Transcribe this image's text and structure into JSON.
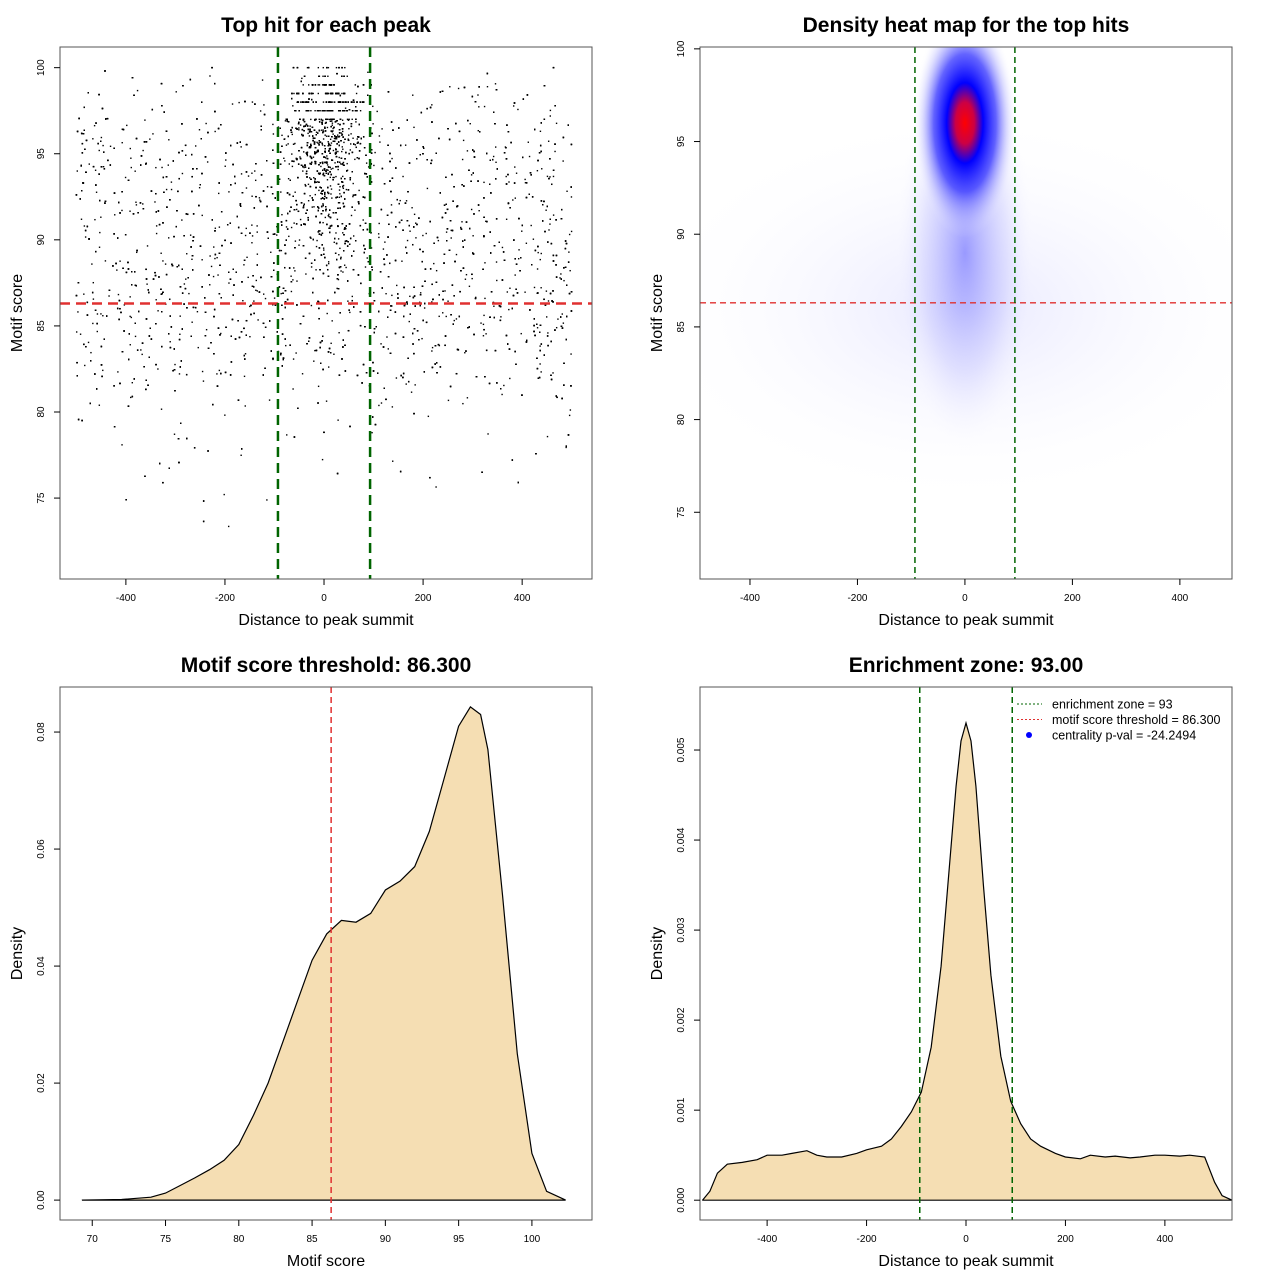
{
  "chart_data": [
    {
      "type": "scatter",
      "title": "Top hit for each peak",
      "xlabel": "Distance to peak summit",
      "ylabel": "Motif score",
      "xlim": [
        -533,
        541
      ],
      "ylim": [
        70.3,
        101.2
      ],
      "xticks": [
        -400,
        -200,
        0,
        200,
        400
      ],
      "yticks": [
        75,
        80,
        85,
        90,
        95,
        100
      ],
      "hlines": [
        {
          "y": 86.3,
          "color": "#e03030",
          "style": "dashed"
        }
      ],
      "vlines": [
        {
          "x": -93,
          "color": "#006400",
          "style": "dashed"
        },
        {
          "x": 93,
          "color": "#006400",
          "style": "dashed"
        }
      ],
      "point_color": "#000000",
      "x_range_of_points": [
        -500,
        500
      ],
      "cluster_center": {
        "x": 0,
        "y": 96
      }
    },
    {
      "type": "heatmap",
      "title": "Density heat map for the top hits",
      "xlabel": "Distance to peak summit",
      "ylabel": "Motif score",
      "xlim": [
        -493,
        497
      ],
      "ylim": [
        71.4,
        100.1
      ],
      "xticks": [
        -400,
        -200,
        0,
        200,
        400
      ],
      "yticks": [
        75,
        80,
        85,
        90,
        95,
        100
      ],
      "hlines": [
        {
          "y": 86.3,
          "color": "#e03030",
          "style": "dashed"
        }
      ],
      "vlines": [
        {
          "x": -93,
          "color": "#006400",
          "style": "dashed"
        },
        {
          "x": 93,
          "color": "#006400",
          "style": "dashed"
        }
      ],
      "colors": [
        "#ffffff",
        "#0000ff",
        "#ff0000"
      ],
      "peak": {
        "x": 0,
        "y": 96
      }
    },
    {
      "type": "area",
      "title": "Motif score threshold: 86.300",
      "xlabel": "Motif score",
      "ylabel": "Density",
      "xlim": [
        67.8,
        104.1
      ],
      "ylim": [
        -0.0034,
        0.0877
      ],
      "xticks": [
        70,
        75,
        80,
        85,
        90,
        95,
        100
      ],
      "yticks": [
        0.0,
        0.02,
        0.04,
        0.06,
        0.08
      ],
      "ytick_labels": [
        "0.00",
        "0.02",
        "0.04",
        "0.06",
        "0.08"
      ],
      "fill": "#f5deb3",
      "vlines": [
        {
          "x": 86.3,
          "color": "#e03030",
          "style": "dashed"
        }
      ],
      "x": [
        69.3,
        72,
        74,
        75,
        76,
        77,
        78,
        79,
        80,
        81,
        82,
        83,
        84,
        85,
        86,
        87,
        88,
        89,
        90,
        91,
        92,
        93,
        94,
        95,
        95.8,
        96.5,
        97,
        98,
        99,
        100,
        101,
        102.3
      ],
      "y": [
        0,
        0.0001,
        0.0005,
        0.0012,
        0.0025,
        0.0038,
        0.0052,
        0.0068,
        0.0095,
        0.0145,
        0.02,
        0.027,
        0.034,
        0.041,
        0.0455,
        0.0478,
        0.0475,
        0.049,
        0.053,
        0.0545,
        0.057,
        0.063,
        0.072,
        0.081,
        0.0843,
        0.083,
        0.077,
        0.052,
        0.025,
        0.008,
        0.0015,
        0
      ]
    },
    {
      "type": "area",
      "title": "Enrichment zone: 93.00",
      "xlabel": "Distance to peak summit",
      "ylabel": "Density",
      "xlim": [
        -535,
        535
      ],
      "ylim": [
        -0.00022,
        0.0057
      ],
      "xticks": [
        -400,
        -200,
        0,
        200,
        400
      ],
      "yticks": [
        0,
        0.001,
        0.002,
        0.003,
        0.004,
        0.005
      ],
      "ytick_labels": [
        "0.000",
        "0.001",
        "0.002",
        "0.003",
        "0.004",
        "0.005"
      ],
      "fill": "#f5deb3",
      "vlines": [
        {
          "x": -93,
          "color": "#006400",
          "style": "dashed"
        },
        {
          "x": 93,
          "color": "#006400",
          "style": "dashed"
        }
      ],
      "x": [
        -530,
        -515,
        -500,
        -480,
        -450,
        -420,
        -400,
        -370,
        -350,
        -320,
        -300,
        -280,
        -250,
        -220,
        -200,
        -170,
        -150,
        -130,
        -110,
        -90,
        -70,
        -50,
        -35,
        -20,
        -10,
        0,
        10,
        20,
        35,
        50,
        70,
        90,
        110,
        130,
        150,
        180,
        200,
        230,
        250,
        280,
        300,
        330,
        350,
        380,
        400,
        430,
        450,
        480,
        500,
        515,
        535
      ],
      "y": [
        0,
        0.0001,
        0.0003,
        0.0004,
        0.00042,
        0.00045,
        0.0005,
        0.0005,
        0.00052,
        0.00055,
        0.0005,
        0.00048,
        0.00048,
        0.00052,
        0.00056,
        0.0006,
        0.00068,
        0.00082,
        0.00098,
        0.0012,
        0.0017,
        0.0026,
        0.0036,
        0.0046,
        0.0051,
        0.0053,
        0.0051,
        0.0046,
        0.0035,
        0.0025,
        0.0016,
        0.0011,
        0.00085,
        0.00068,
        0.0006,
        0.00052,
        0.00048,
        0.00046,
        0.0005,
        0.00048,
        0.00049,
        0.00047,
        0.00048,
        0.0005,
        0.0005,
        0.00049,
        0.0005,
        0.00048,
        0.0002,
        5e-05,
        0
      ]
    }
  ],
  "legend": {
    "items": [
      {
        "label": "enrichment zone = 93",
        "color": "#006400",
        "style": "dotted"
      },
      {
        "label": "motif score threshold = 86.300",
        "color": "#e03030",
        "style": "dotted"
      },
      {
        "label": "centrality p-val = -24.2494",
        "color": "#0000ff",
        "style": "point"
      }
    ],
    "position": "top-right"
  }
}
